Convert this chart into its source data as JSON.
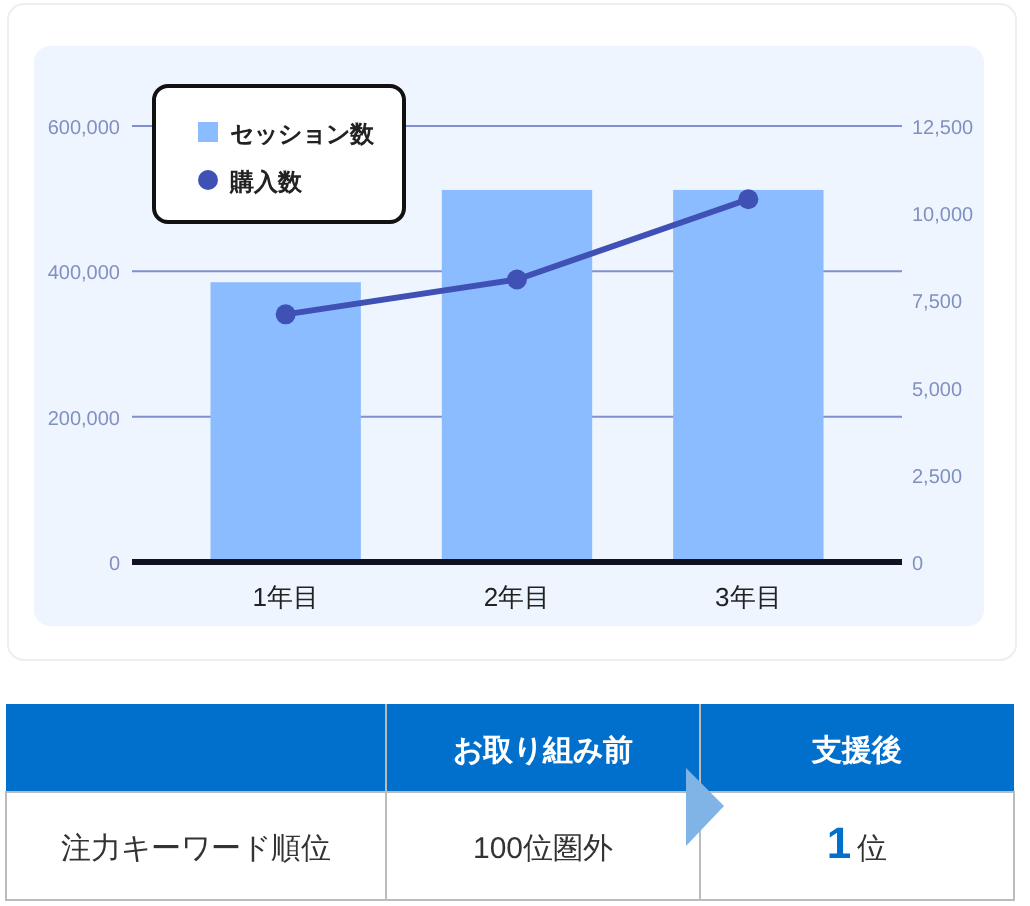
{
  "chart_data": [
    {
      "type": "bar",
      "categories": [
        "1年目",
        "2年目",
        "3年目"
      ],
      "series": [
        {
          "name": "セッション数",
          "color": "#8bbcff",
          "values": [
            385000,
            512000,
            512000
          ]
        },
        {
          "name": "購入数",
          "type": "line",
          "axis": "y2",
          "color": "#3f51b5",
          "marker": "circle",
          "values": [
            7100,
            8100,
            10400
          ]
        }
      ],
      "ylim": [
        0,
        600000
      ],
      "yticks": [
        0,
        {
          "value": 200000,
          "label": "200,000"
        },
        {
          "value": 400000,
          "label": "400,000"
        },
        {
          "value": 600000,
          "label": "600,000"
        }
      ],
      "y2lim": [
        0,
        12500
      ],
      "y2ticks": [
        0,
        {
          "value": 2500,
          "label": "2,500"
        },
        {
          "value": 5000,
          "label": "5,000"
        },
        {
          "value": 7500,
          "label": "7,500"
        },
        {
          "value": 10000,
          "label": "10,000"
        },
        {
          "value": 12500,
          "label": "12,500"
        }
      ],
      "grid": "y",
      "legend": "top left"
    },
    {
      "type": "other",
      "annotations": [
        "お取り組み前",
        "支援後",
        "注力キーワード順位",
        "100位圏外",
        "1位"
      ]
    }
  ]
}
